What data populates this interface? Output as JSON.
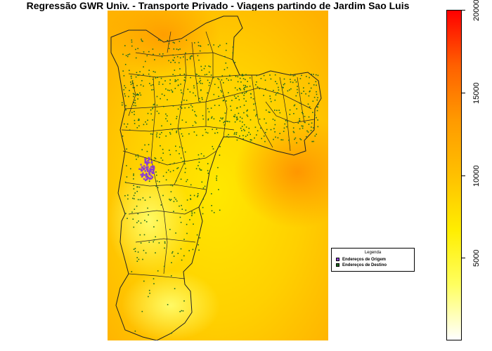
{
  "title": "Regressão GWR Univ. - Transporte Privado - Viagens partindo de Jardim Sao Luis",
  "legend": {
    "title": "Legenda",
    "items": [
      {
        "label": "Endereços de Origem",
        "color": "#8a3fd1"
      },
      {
        "label": "Endereços de Destino",
        "color": "#1e6b1e"
      }
    ]
  },
  "colorbar": {
    "min": 0,
    "max": 20000,
    "ticks": [
      "5000",
      "10000",
      "15000",
      "20000"
    ],
    "colors": [
      "#ffffff",
      "#ffff60",
      "#ffee00",
      "#ffc000",
      "#ff9a00",
      "#ff6000",
      "#ff0000"
    ]
  }
}
